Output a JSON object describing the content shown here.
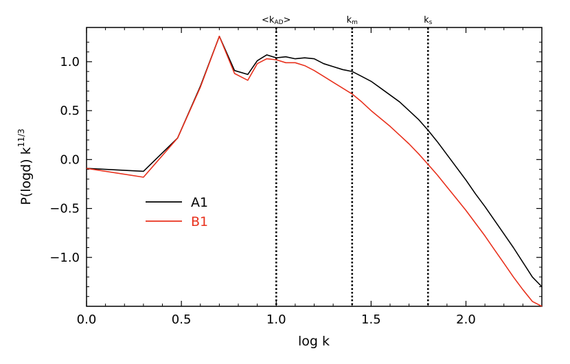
{
  "chart_data": {
    "type": "line",
    "title": "",
    "xlabel": "log k",
    "ylabel": "P(logd) k",
    "ylabel_sup": "11/3",
    "xlim": [
      0.0,
      2.4
    ],
    "ylim": [
      -1.5,
      1.35
    ],
    "grid": false,
    "legend_position": "left-middle",
    "x_ticks": [
      {
        "value": 0.0,
        "label": "0.0"
      },
      {
        "value": 0.5,
        "label": "0.5"
      },
      {
        "value": 1.0,
        "label": "1.0"
      },
      {
        "value": 1.5,
        "label": "1.5"
      },
      {
        "value": 2.0,
        "label": "2.0"
      }
    ],
    "y_ticks": [
      {
        "value": -1.0,
        "label": "−1.0"
      },
      {
        "value": -0.5,
        "label": "−0.5"
      },
      {
        "value": 0.0,
        "label": "0.0"
      },
      {
        "value": 0.5,
        "label": "0.5"
      },
      {
        "value": 1.0,
        "label": "1.0"
      }
    ],
    "vertical_markers": [
      {
        "x": 1.0,
        "label": "<k",
        "sub": "AD",
        "suffix": ">"
      },
      {
        "x": 1.4,
        "label": "k",
        "sub": "m",
        "suffix": ""
      },
      {
        "x": 1.8,
        "label": "k",
        "sub": "s",
        "suffix": ""
      }
    ],
    "series": [
      {
        "name": "A1",
        "color": "#000000",
        "x": [
          0.0,
          0.3,
          0.48,
          0.6,
          0.7,
          0.78,
          0.85,
          0.9,
          0.95,
          1.0,
          1.05,
          1.1,
          1.15,
          1.2,
          1.25,
          1.3,
          1.35,
          1.4,
          1.45,
          1.5,
          1.55,
          1.6,
          1.65,
          1.7,
          1.75,
          1.8,
          1.85,
          1.9,
          1.95,
          2.0,
          2.05,
          2.1,
          2.15,
          2.2,
          2.25,
          2.3,
          2.35,
          2.4
        ],
        "y": [
          -0.09,
          -0.12,
          0.22,
          0.75,
          1.26,
          0.91,
          0.87,
          1.01,
          1.07,
          1.04,
          1.05,
          1.03,
          1.04,
          1.03,
          0.98,
          0.95,
          0.92,
          0.9,
          0.85,
          0.8,
          0.73,
          0.66,
          0.59,
          0.5,
          0.41,
          0.3,
          0.18,
          0.05,
          -0.08,
          -0.21,
          -0.35,
          -0.48,
          -0.62,
          -0.76,
          -0.9,
          -1.05,
          -1.2,
          -1.3
        ]
      },
      {
        "name": "B1",
        "color": "#e8301c",
        "x": [
          0.0,
          0.3,
          0.48,
          0.6,
          0.7,
          0.78,
          0.85,
          0.9,
          0.95,
          1.0,
          1.05,
          1.1,
          1.15,
          1.2,
          1.25,
          1.3,
          1.35,
          1.4,
          1.45,
          1.5,
          1.55,
          1.6,
          1.65,
          1.7,
          1.75,
          1.8,
          1.85,
          1.9,
          1.95,
          2.0,
          2.05,
          2.1,
          2.15,
          2.2,
          2.25,
          2.3,
          2.35,
          2.4
        ],
        "y": [
          -0.09,
          -0.18,
          0.22,
          0.74,
          1.26,
          0.88,
          0.81,
          0.98,
          1.03,
          1.02,
          0.99,
          0.99,
          0.96,
          0.91,
          0.85,
          0.79,
          0.73,
          0.67,
          0.59,
          0.5,
          0.42,
          0.34,
          0.25,
          0.16,
          0.06,
          -0.05,
          -0.16,
          -0.28,
          -0.4,
          -0.52,
          -0.65,
          -0.78,
          -0.92,
          -1.06,
          -1.2,
          -1.33,
          -1.45,
          -1.5
        ]
      }
    ]
  }
}
